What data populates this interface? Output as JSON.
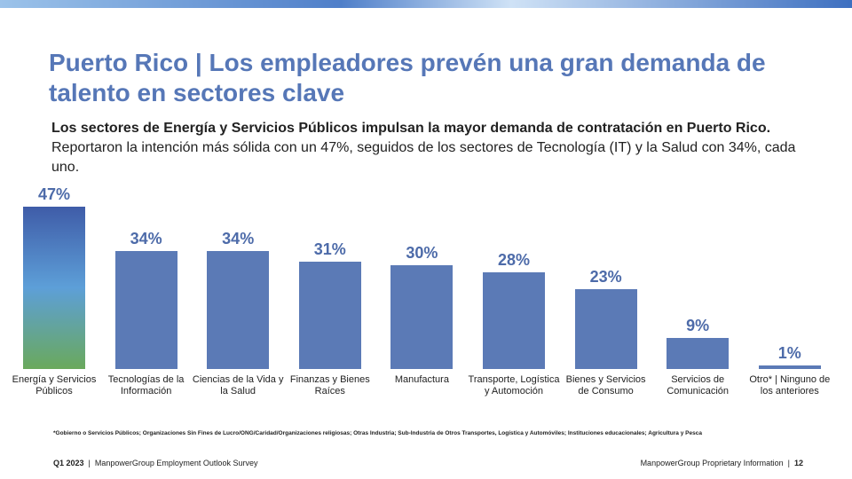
{
  "header": {
    "title": "Puerto Rico | Los empleadores prevén una gran demanda de talento en sectores clave",
    "subtitle_bold": "Los sectores de Energía y Servicios Públicos impulsan la mayor demanda de contratación en Puerto Rico.",
    "subtitle": "Reportaron la intención más sólida con un 47%, seguidos de los sectores de Tecnología (IT) y la Salud con 34%, cada uno."
  },
  "chart_data": {
    "type": "bar",
    "categories": [
      "Energía y Servicios Públicos",
      "Tecnologías de la Información",
      "Ciencias de la Vida y la Salud",
      "Finanzas y Bienes Raíces",
      "Manufactura",
      "Transporte, Logística y Automoción",
      "Bienes y Servicios de Consumo",
      "Servicios de Comunicación",
      "Otro* | Ninguno de los anteriores"
    ],
    "values": [
      47,
      34,
      34,
      31,
      30,
      28,
      23,
      9,
      1
    ],
    "value_labels": [
      "47%",
      "34%",
      "34%",
      "31%",
      "30%",
      "28%",
      "23%",
      "9%",
      "1%"
    ],
    "color": "#5b7ab6",
    "highlight_colors": [
      "#3f5ca8",
      "#5d9fd8",
      "#6aa95c"
    ]
  },
  "footnote": "*Gobierno o Servicios Públicos; Organizaciones Sin Fines de Lucro/ONG/Caridad/Organizaciones religiosas; Otras Industria; Sub-Industria de Otros Transportes, Logística y Automóviles; Instituciones educacionales; Agricultura y Pesca",
  "footer": {
    "left_bold": "Q1 2023",
    "left": "ManpowerGroup Employment Outlook Survey",
    "right": "ManpowerGroup Proprietary Information",
    "page": "12"
  }
}
